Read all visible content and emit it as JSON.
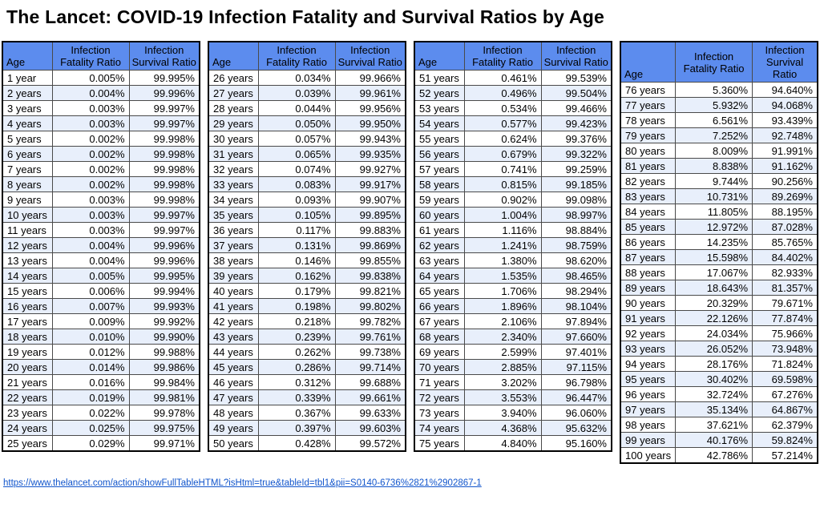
{
  "title": "The Lancet: COVID-19 Infection Fatality and Survival Ratios by Age",
  "source_link": "https://www.thelancet.com/action/showFullTableHTML?isHtml=true&tableId=tbl1&pii=S0140-6736%2821%2902867-1",
  "colors": {
    "header_bg": "#5c8cee",
    "row_alt_bg": "#e8effb",
    "row_bg": "#ffffff",
    "inner_border": "#4a4a4a",
    "outer_border": "#000000",
    "link": "#1155cc"
  },
  "columns": [
    "Age",
    "Infection\nFatality Ratio",
    "Infection\nSurvival Ratio"
  ],
  "chart_data": {
    "type": "table",
    "title": "The Lancet: COVID-19 Infection Fatality and Survival Ratios by Age",
    "column_headers": [
      "Age",
      "Infection Fatality Ratio",
      "Infection Survival Ratio"
    ],
    "layout": "four side-by-side tables, 25 rows each, ages 1-100",
    "tables": [
      {
        "rows": [
          [
            "1 year",
            "0.005%",
            "99.995%"
          ],
          [
            "2 years",
            "0.004%",
            "99.996%"
          ],
          [
            "3 years",
            "0.003%",
            "99.997%"
          ],
          [
            "4 years",
            "0.003%",
            "99.997%"
          ],
          [
            "5 years",
            "0.002%",
            "99.998%"
          ],
          [
            "6 years",
            "0.002%",
            "99.998%"
          ],
          [
            "7 years",
            "0.002%",
            "99.998%"
          ],
          [
            "8 years",
            "0.002%",
            "99.998%"
          ],
          [
            "9 years",
            "0.003%",
            "99.998%"
          ],
          [
            "10 years",
            "0.003%",
            "99.997%"
          ],
          [
            "11 years",
            "0.003%",
            "99.997%"
          ],
          [
            "12 years",
            "0.004%",
            "99.996%"
          ],
          [
            "13 years",
            "0.004%",
            "99.996%"
          ],
          [
            "14 years",
            "0.005%",
            "99.995%"
          ],
          [
            "15 years",
            "0.006%",
            "99.994%"
          ],
          [
            "16 years",
            "0.007%",
            "99.993%"
          ],
          [
            "17 years",
            "0.009%",
            "99.992%"
          ],
          [
            "18 years",
            "0.010%",
            "99.990%"
          ],
          [
            "19 years",
            "0.012%",
            "99.988%"
          ],
          [
            "20 years",
            "0.014%",
            "99.986%"
          ],
          [
            "21 years",
            "0.016%",
            "99.984%"
          ],
          [
            "22 years",
            "0.019%",
            "99.981%"
          ],
          [
            "23 years",
            "0.022%",
            "99.978%"
          ],
          [
            "24 years",
            "0.025%",
            "99.975%"
          ],
          [
            "25 years",
            "0.029%",
            "99.971%"
          ]
        ]
      },
      {
        "rows": [
          [
            "26 years",
            "0.034%",
            "99.966%"
          ],
          [
            "27 years",
            "0.039%",
            "99.961%"
          ],
          [
            "28 years",
            "0.044%",
            "99.956%"
          ],
          [
            "29 years",
            "0.050%",
            "99.950%"
          ],
          [
            "30 years",
            "0.057%",
            "99.943%"
          ],
          [
            "31 years",
            "0.065%",
            "99.935%"
          ],
          [
            "32 years",
            "0.074%",
            "99.927%"
          ],
          [
            "33 years",
            "0.083%",
            "99.917%"
          ],
          [
            "34 years",
            "0.093%",
            "99.907%"
          ],
          [
            "35 years",
            "0.105%",
            "99.895%"
          ],
          [
            "36 years",
            "0.117%",
            "99.883%"
          ],
          [
            "37 years",
            "0.131%",
            "99.869%"
          ],
          [
            "38 years",
            "0.146%",
            "99.855%"
          ],
          [
            "39 years",
            "0.162%",
            "99.838%"
          ],
          [
            "40 years",
            "0.179%",
            "99.821%"
          ],
          [
            "41 years",
            "0.198%",
            "99.802%"
          ],
          [
            "42 years",
            "0.218%",
            "99.782%"
          ],
          [
            "43 years",
            "0.239%",
            "99.761%"
          ],
          [
            "44 years",
            "0.262%",
            "99.738%"
          ],
          [
            "45 years",
            "0.286%",
            "99.714%"
          ],
          [
            "46 years",
            "0.312%",
            "99.688%"
          ],
          [
            "47 years",
            "0.339%",
            "99.661%"
          ],
          [
            "48 years",
            "0.367%",
            "99.633%"
          ],
          [
            "49 years",
            "0.397%",
            "99.603%"
          ],
          [
            "50 years",
            "0.428%",
            "99.572%"
          ]
        ]
      },
      {
        "rows": [
          [
            "51 years",
            "0.461%",
            "99.539%"
          ],
          [
            "52 years",
            "0.496%",
            "99.504%"
          ],
          [
            "53 years",
            "0.534%",
            "99.466%"
          ],
          [
            "54 years",
            "0.577%",
            "99.423%"
          ],
          [
            "55 years",
            "0.624%",
            "99.376%"
          ],
          [
            "56 years",
            "0.679%",
            "99.322%"
          ],
          [
            "57 years",
            "0.741%",
            "99.259%"
          ],
          [
            "58 years",
            "0.815%",
            "99.185%"
          ],
          [
            "59 years",
            "0.902%",
            "99.098%"
          ],
          [
            "60 years",
            "1.004%",
            "98.997%"
          ],
          [
            "61 years",
            "1.116%",
            "98.884%"
          ],
          [
            "62 years",
            "1.241%",
            "98.759%"
          ],
          [
            "63 years",
            "1.380%",
            "98.620%"
          ],
          [
            "64 years",
            "1.535%",
            "98.465%"
          ],
          [
            "65 years",
            "1.706%",
            "98.294%"
          ],
          [
            "66 years",
            "1.896%",
            "98.104%"
          ],
          [
            "67 years",
            "2.106%",
            "97.894%"
          ],
          [
            "68 years",
            "2.340%",
            "97.660%"
          ],
          [
            "69 years",
            "2.599%",
            "97.401%"
          ],
          [
            "70 years",
            "2.885%",
            "97.115%"
          ],
          [
            "71 years",
            "3.202%",
            "96.798%"
          ],
          [
            "72 years",
            "3.553%",
            "96.447%"
          ],
          [
            "73 years",
            "3.940%",
            "96.060%"
          ],
          [
            "74 years",
            "4.368%",
            "95.632%"
          ],
          [
            "75 years",
            "4.840%",
            "95.160%"
          ]
        ]
      },
      {
        "rows": [
          [
            "76 years",
            "5.360%",
            "94.640%"
          ],
          [
            "77 years",
            "5.932%",
            "94.068%"
          ],
          [
            "78 years",
            "6.561%",
            "93.439%"
          ],
          [
            "79 years",
            "7.252%",
            "92.748%"
          ],
          [
            "80 years",
            "8.009%",
            "91.991%"
          ],
          [
            "81 years",
            "8.838%",
            "91.162%"
          ],
          [
            "82 years",
            "9.744%",
            "90.256%"
          ],
          [
            "83 years",
            "10.731%",
            "89.269%"
          ],
          [
            "84 years",
            "11.805%",
            "88.195%"
          ],
          [
            "85 years",
            "12.972%",
            "87.028%"
          ],
          [
            "86 years",
            "14.235%",
            "85.765%"
          ],
          [
            "87 years",
            "15.598%",
            "84.402%"
          ],
          [
            "88 years",
            "17.067%",
            "82.933%"
          ],
          [
            "89 years",
            "18.643%",
            "81.357%"
          ],
          [
            "90 years",
            "20.329%",
            "79.671%"
          ],
          [
            "91 years",
            "22.126%",
            "77.874%"
          ],
          [
            "92 years",
            "24.034%",
            "75.966%"
          ],
          [
            "93 years",
            "26.052%",
            "73.948%"
          ],
          [
            "94 years",
            "28.176%",
            "71.824%"
          ],
          [
            "95 years",
            "30.402%",
            "69.598%"
          ],
          [
            "96 years",
            "32.724%",
            "67.276%"
          ],
          [
            "97 years",
            "35.134%",
            "64.867%"
          ],
          [
            "98 years",
            "37.621%",
            "62.379%"
          ],
          [
            "99 years",
            "40.176%",
            "59.824%"
          ],
          [
            "100 years",
            "42.786%",
            "57.214%"
          ]
        ]
      }
    ]
  }
}
